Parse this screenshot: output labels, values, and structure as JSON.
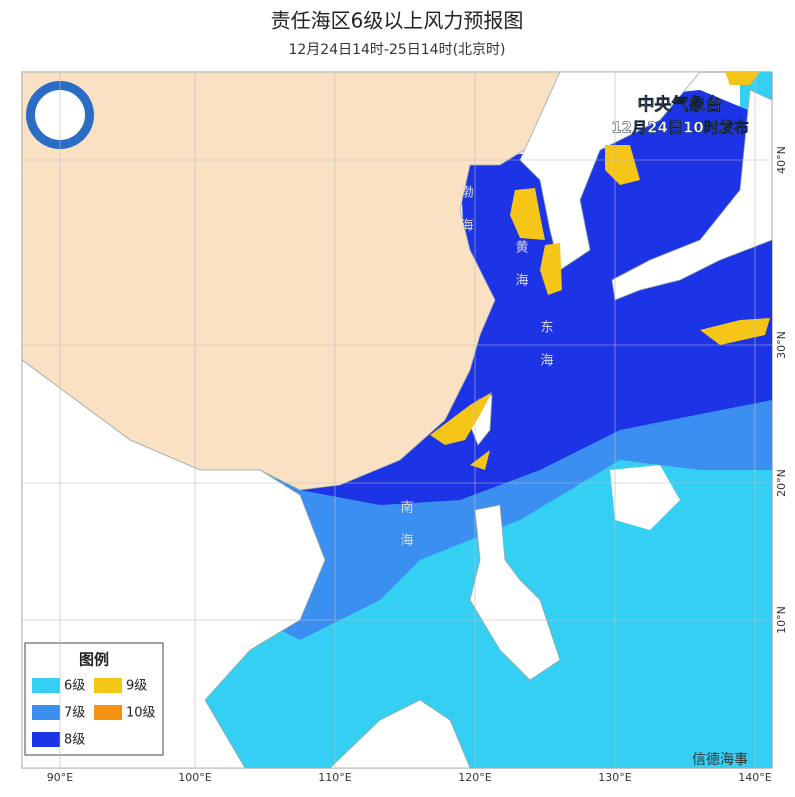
{
  "header": {
    "title": "责任海区6级以上风力预报图",
    "subtitle": "12月24日14时-25日14时(北京时)"
  },
  "issuer": {
    "name": "中央气象台",
    "issued": "12月24日10时发布"
  },
  "legend": {
    "title": "图例",
    "items": [
      {
        "label": "6级",
        "color": "#36cff4"
      },
      {
        "label": "9级",
        "color": "#f5c518"
      },
      {
        "label": "7级",
        "color": "#3b8ff0"
      },
      {
        "label": "10级",
        "color": "#f59212"
      },
      {
        "label": "8级",
        "color": "#1c34e6"
      }
    ]
  },
  "longitudes": [
    "90°E",
    "100°E",
    "110°E",
    "120°E",
    "130°E",
    "140°E"
  ],
  "latitudes": [
    "40°N",
    "30°N",
    "20°N",
    "10°N"
  ],
  "seas": [
    "渤海",
    "黄海",
    "东海",
    "南海"
  ],
  "watermark": "信德海事"
}
